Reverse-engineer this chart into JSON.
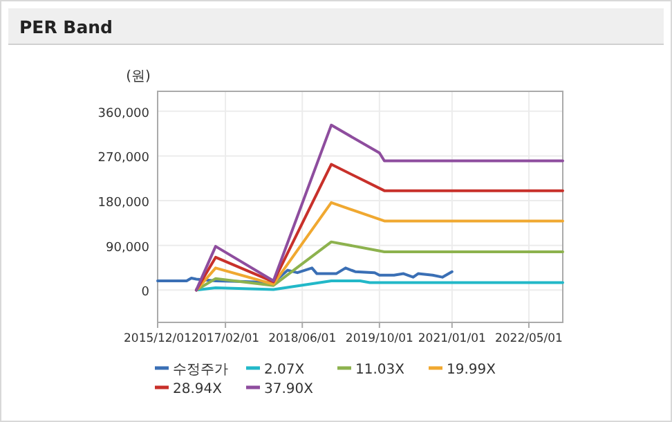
{
  "chart_data": {
    "type": "line",
    "title": "PER Band",
    "ylabel": "(원)",
    "xlim": [
      "2015-12-01",
      "2022-12-01"
    ],
    "ylim": [
      -65000,
      400000
    ],
    "xticks": [
      {
        "value": "2015-12-01",
        "label": "2015/12/01"
      },
      {
        "value": "2017-02-01",
        "label": "2017/02/01"
      },
      {
        "value": "2018-06-01",
        "label": "2018/06/01"
      },
      {
        "value": "2019-10-01",
        "label": "2019/10/01"
      },
      {
        "value": "2021-01-01",
        "label": "2021/01/01"
      },
      {
        "value": "2022-05-01",
        "label": "2022/05/01"
      }
    ],
    "yticks": [
      {
        "value": 0,
        "label": "0"
      },
      {
        "value": 90000,
        "label": "90,000"
      },
      {
        "value": 180000,
        "label": "180,000"
      },
      {
        "value": 270000,
        "label": "270,000"
      },
      {
        "value": 360000,
        "label": "360,000"
      }
    ],
    "grid": true,
    "legend": "bottom",
    "marker": "none",
    "line_style": "solid",
    "series": [
      {
        "name": "수정주가",
        "color": "#3a6fb5",
        "x": [
          "2015-12",
          "2016-06",
          "2016-07",
          "2016-08",
          "2016-12",
          "2017-06",
          "2017-12",
          "2018-03",
          "2018-05",
          "2018-08",
          "2018-09",
          "2019-01",
          "2019-03",
          "2019-05",
          "2019-09",
          "2019-10",
          "2020-01",
          "2020-03",
          "2020-05",
          "2020-06",
          "2020-09",
          "2020-11",
          "2021-01"
        ],
        "values": [
          18500,
          18500,
          24000,
          22000,
          18500,
          17000,
          15000,
          40000,
          35000,
          44500,
          33000,
          33000,
          44500,
          37000,
          35000,
          30000,
          30000,
          33000,
          26000,
          33000,
          30000,
          26000,
          37000
        ]
      },
      {
        "name": "2.07X",
        "color": "#22b8c8",
        "x": [
          "2016-08",
          "2016-12",
          "2017-12",
          "2018-12",
          "2019-06",
          "2019-08",
          "2022-12"
        ],
        "values": [
          0,
          4600,
          1000,
          18500,
          18500,
          15000,
          15000
        ]
      },
      {
        "name": "11.03X",
        "color": "#8db24e",
        "x": [
          "2016-08",
          "2016-12",
          "2017-12",
          "2018-12",
          "2019-11",
          "2022-12"
        ],
        "values": [
          0,
          23000,
          9300,
          97000,
          77000,
          77000
        ]
      },
      {
        "name": "19.99X",
        "color": "#f0a830",
        "x": [
          "2016-08",
          "2016-12",
          "2017-12",
          "2018-12",
          "2019-11",
          "2022-12"
        ],
        "values": [
          0,
          44500,
          12000,
          176000,
          139000,
          139000
        ]
      },
      {
        "name": "28.94X",
        "color": "#c8302a",
        "x": [
          "2016-08",
          "2016-12",
          "2017-12",
          "2018-12",
          "2019-11",
          "2022-12"
        ],
        "values": [
          0,
          66000,
          16700,
          253000,
          200000,
          200000
        ]
      },
      {
        "name": "37.90X",
        "color": "#8e4d9e",
        "x": [
          "2016-08",
          "2016-12",
          "2017-12",
          "2018-12",
          "2019-10",
          "2019-11",
          "2022-12"
        ],
        "values": [
          0,
          88000,
          18500,
          332000,
          276000,
          260000,
          260000
        ]
      }
    ]
  }
}
